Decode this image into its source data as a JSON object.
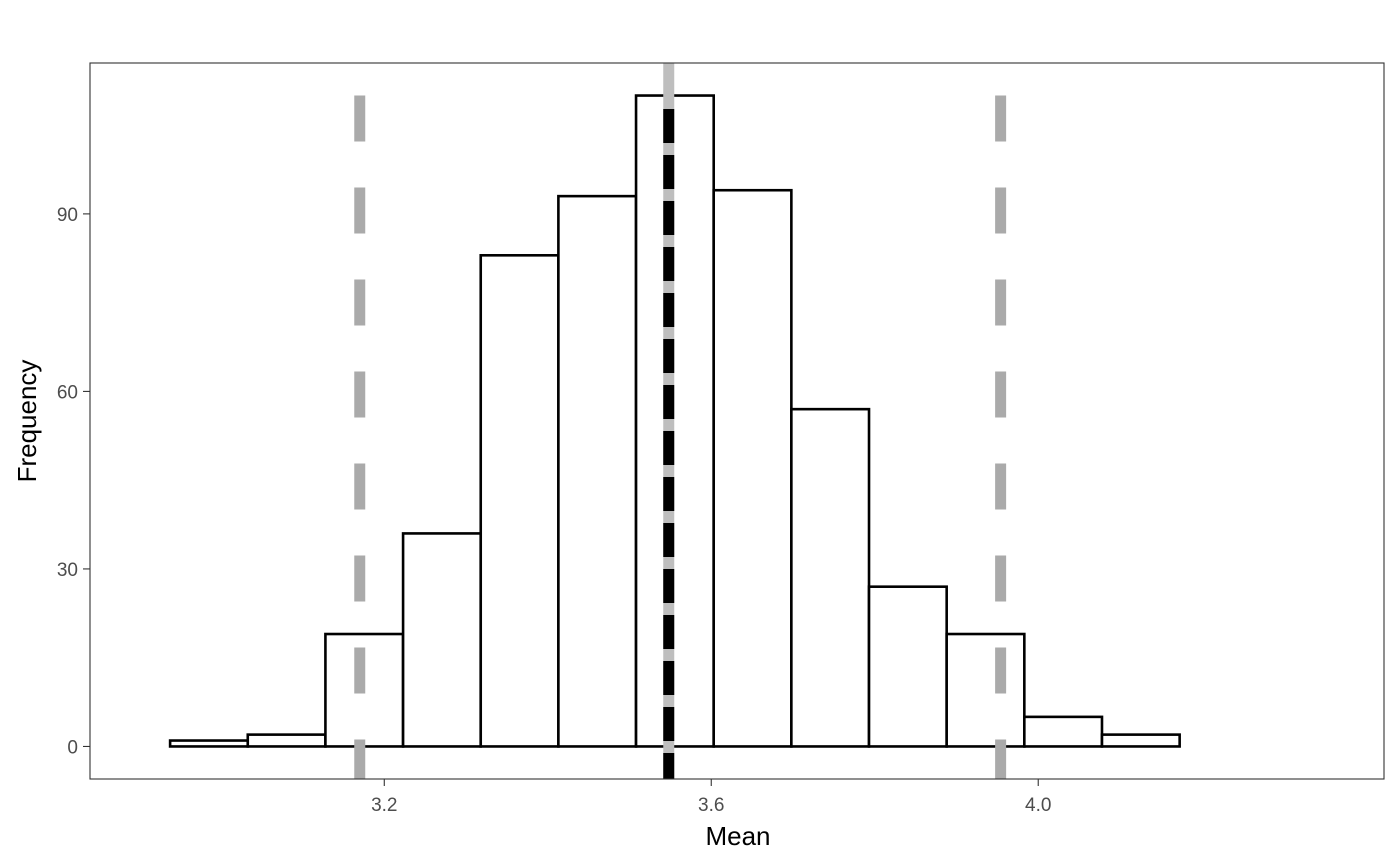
{
  "chart_data": {
    "type": "bar",
    "title": "",
    "xlabel": "Mean",
    "ylabel": "Frequency",
    "xlim": [
      2.84,
      4.423
    ],
    "ylim": [
      -5.5,
      115.5
    ],
    "x_ticks": [
      {
        "value": 3.2,
        "label": "3.2"
      },
      {
        "value": 3.6,
        "label": "3.6"
      },
      {
        "value": 4.0,
        "label": "4.0"
      }
    ],
    "y_ticks": [
      {
        "value": 0,
        "label": "0"
      },
      {
        "value": 30,
        "label": "30"
      },
      {
        "value": 60,
        "label": "60"
      },
      {
        "value": 90,
        "label": "90"
      }
    ],
    "bins": [
      {
        "x0": 2.938,
        "x1": 3.033,
        "count": 1
      },
      {
        "x0": 3.033,
        "x1": 3.128,
        "count": 2
      },
      {
        "x0": 3.128,
        "x1": 3.223,
        "count": 19
      },
      {
        "x0": 3.223,
        "x1": 3.318,
        "count": 36
      },
      {
        "x0": 3.318,
        "x1": 3.413,
        "count": 83
      },
      {
        "x0": 3.413,
        "x1": 3.508,
        "count": 93
      },
      {
        "x0": 3.508,
        "x1": 3.603,
        "count": 110
      },
      {
        "x0": 3.603,
        "x1": 3.698,
        "count": 94
      },
      {
        "x0": 3.698,
        "x1": 3.793,
        "count": 57
      },
      {
        "x0": 3.793,
        "x1": 3.888,
        "count": 27
      },
      {
        "x0": 3.888,
        "x1": 3.983,
        "count": 19
      },
      {
        "x0": 3.983,
        "x1": 4.078,
        "count": 5
      },
      {
        "x0": 4.078,
        "x1": 4.173,
        "count": 2
      }
    ],
    "vlines": [
      {
        "name": "lower-bound",
        "x": 3.17,
        "color": "#aaaaaa",
        "style": "dashed",
        "extent": [
          0,
          110
        ]
      },
      {
        "name": "center",
        "x": 3.548,
        "color": "#000000",
        "style": "dashed",
        "overlay_color": "#bebebe",
        "extent": "full"
      },
      {
        "name": "upper-bound",
        "x": 3.954,
        "color": "#aaaaaa",
        "style": "dashed",
        "extent": [
          0,
          110
        ]
      }
    ],
    "grid": false,
    "legend": "none",
    "colors": {
      "bar_fill": "#ffffff",
      "bar_stroke": "#000000",
      "panel_border": "#333333",
      "tick_text": "#4d4d4d",
      "axis_title": "#000000"
    }
  }
}
